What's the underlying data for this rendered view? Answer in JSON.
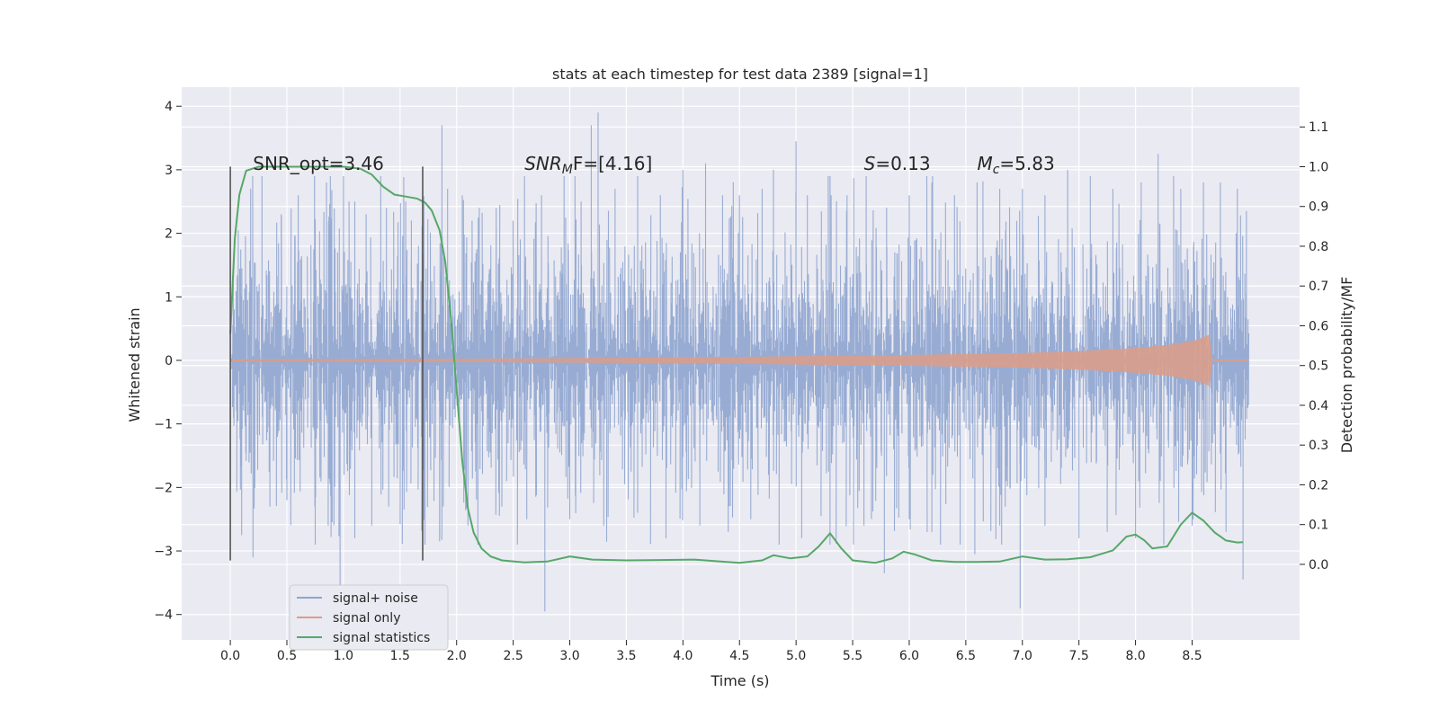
{
  "colors": {
    "background": "#ffffff",
    "plot_bg": "#eaeaf2",
    "grid": "#ffffff",
    "text": "#262626",
    "noise": "#8fa5cf",
    "signal": "#dd9d87",
    "statistics": "#55a868",
    "marker": "#555555"
  },
  "chart_data": {
    "type": "line",
    "title": "stats at each timestep for test data 2389 [signal=1]",
    "xlabel": "Time (s)",
    "ylabel": "Whitened strain",
    "y2label": "Detection probability/MF",
    "xlim": [
      -0.43,
      9.45
    ],
    "ylim": [
      -4.4,
      4.3
    ],
    "y2lim": [
      -0.19,
      1.2
    ],
    "xticks": [
      0.0,
      0.5,
      1.0,
      1.5,
      2.0,
      2.5,
      3.0,
      3.5,
      4.0,
      4.5,
      5.0,
      5.5,
      6.0,
      6.5,
      7.0,
      7.5,
      8.0,
      8.5
    ],
    "xtick_labels": [
      "0.0",
      "0.5",
      "1.0",
      "1.5",
      "2.0",
      "2.5",
      "3.0",
      "3.5",
      "4.0",
      "4.5",
      "5.0",
      "5.5",
      "6.0",
      "6.5",
      "7.0",
      "7.5",
      "8.0",
      "8.5"
    ],
    "yticks": [
      4,
      3,
      2,
      1,
      0,
      -1,
      -2,
      -3,
      -4
    ],
    "ytick_labels": [
      "4",
      "3",
      "2",
      "1",
      "0",
      "−1",
      "−2",
      "−3",
      "−4"
    ],
    "y2ticks": [
      1.1,
      1.0,
      0.9,
      0.8,
      0.7,
      0.6,
      0.5,
      0.4,
      0.3,
      0.2,
      0.1,
      0.0
    ],
    "y2tick_labels": [
      "1.1",
      "1.0",
      "0.9",
      "0.8",
      "0.7",
      "0.6",
      "0.5",
      "0.4",
      "0.3",
      "0.2",
      "0.1",
      "0.0"
    ],
    "grid": true,
    "legend_position": "lower-left",
    "series": [
      {
        "name": "signal+ noise",
        "kind": "noise-band",
        "x_range": [
          0.0,
          9.0
        ],
        "envelope_1sigma": 1.25,
        "peaks_up": [
          [
            0.07,
            2.05
          ],
          [
            0.18,
            2.7
          ],
          [
            0.28,
            2.9
          ],
          [
            0.45,
            2.3
          ],
          [
            0.6,
            2.6
          ],
          [
            0.85,
            2.8
          ],
          [
            1.0,
            2.9
          ],
          [
            1.1,
            2.5
          ],
          [
            1.2,
            2.3
          ],
          [
            1.38,
            2.4
          ],
          [
            1.55,
            2.5
          ],
          [
            1.6,
            2.2
          ],
          [
            1.87,
            3.7
          ],
          [
            1.92,
            2.7
          ],
          [
            2.05,
            2.6
          ],
          [
            2.2,
            2.4
          ],
          [
            2.35,
            2.1
          ],
          [
            2.6,
            2.9
          ],
          [
            2.75,
            2.6
          ],
          [
            2.95,
            2.9
          ],
          [
            3.1,
            2.5
          ],
          [
            3.19,
            3.7
          ],
          [
            3.25,
            3.9
          ],
          [
            3.4,
            2.7
          ],
          [
            3.6,
            2.9
          ],
          [
            3.8,
            2.6
          ],
          [
            4.0,
            3.0
          ],
          [
            4.2,
            3.1
          ],
          [
            4.35,
            2.6
          ],
          [
            4.5,
            2.6
          ],
          [
            4.7,
            2.7
          ],
          [
            4.8,
            3.0
          ],
          [
            5.0,
            3.45
          ],
          [
            5.1,
            2.6
          ],
          [
            5.3,
            2.9
          ],
          [
            5.45,
            2.6
          ],
          [
            5.62,
            2.9
          ],
          [
            5.8,
            2.4
          ],
          [
            6.0,
            2.6
          ],
          [
            6.2,
            2.8
          ],
          [
            6.4,
            2.6
          ],
          [
            6.6,
            2.8
          ],
          [
            6.8,
            2.7
          ],
          [
            7.0,
            2.7
          ],
          [
            7.2,
            2.6
          ],
          [
            7.4,
            3.0
          ],
          [
            7.6,
            2.9
          ],
          [
            7.8,
            2.7
          ],
          [
            8.05,
            2.8
          ],
          [
            8.2,
            3.25
          ],
          [
            8.4,
            2.7
          ],
          [
            8.6,
            2.8
          ],
          [
            8.75,
            2.8
          ],
          [
            8.9,
            2.7
          ],
          [
            8.98,
            2.35
          ]
        ],
        "peaks_down": [
          [
            0.1,
            -2.75
          ],
          [
            0.2,
            -3.1
          ],
          [
            0.35,
            -2.3
          ],
          [
            0.5,
            -2.2
          ],
          [
            0.75,
            -2.9
          ],
          [
            0.97,
            -3.55
          ],
          [
            1.1,
            -2.8
          ],
          [
            1.25,
            -2.6
          ],
          [
            1.4,
            -2.3
          ],
          [
            1.72,
            -2.9
          ],
          [
            1.85,
            -2.85
          ],
          [
            2.1,
            -2.6
          ],
          [
            2.4,
            -2.3
          ],
          [
            2.62,
            -2.5
          ],
          [
            2.78,
            -3.95
          ],
          [
            3.0,
            -2.5
          ],
          [
            3.3,
            -2.6
          ],
          [
            3.6,
            -2.4
          ],
          [
            3.85,
            -2.8
          ],
          [
            4.15,
            -2.6
          ],
          [
            4.4,
            -2.7
          ],
          [
            4.6,
            -2.5
          ],
          [
            4.85,
            -2.9
          ],
          [
            5.05,
            -2.8
          ],
          [
            5.3,
            -2.9
          ],
          [
            5.6,
            -2.6
          ],
          [
            5.78,
            -3.35
          ],
          [
            6.0,
            -2.5
          ],
          [
            6.2,
            -2.7
          ],
          [
            6.45,
            -2.9
          ],
          [
            6.58,
            -3.05
          ],
          [
            6.8,
            -2.6
          ],
          [
            6.98,
            -3.9
          ],
          [
            7.2,
            -2.6
          ],
          [
            7.5,
            -2.8
          ],
          [
            7.75,
            -2.7
          ],
          [
            8.0,
            -2.8
          ],
          [
            8.25,
            -2.9
          ],
          [
            8.5,
            -2.6
          ],
          [
            8.8,
            -2.7
          ],
          [
            8.95,
            -3.45
          ]
        ]
      },
      {
        "name": "signal only",
        "kind": "chirp-band",
        "x_range": [
          0.0,
          8.67
        ],
        "amplitude": [
          [
            0.0,
            0.01
          ],
          [
            2.0,
            0.02
          ],
          [
            4.0,
            0.04
          ],
          [
            5.0,
            0.06
          ],
          [
            6.0,
            0.08
          ],
          [
            7.0,
            0.11
          ],
          [
            7.5,
            0.14
          ],
          [
            8.0,
            0.19
          ],
          [
            8.3,
            0.24
          ],
          [
            8.5,
            0.3
          ],
          [
            8.6,
            0.35
          ],
          [
            8.65,
            0.4
          ],
          [
            8.67,
            0.1
          ]
        ],
        "tail_x": [
          8.67,
          9.0
        ]
      },
      {
        "name": "signal statistics",
        "axis": "right",
        "points": [
          [
            0.0,
            0.58
          ],
          [
            0.04,
            0.82
          ],
          [
            0.08,
            0.93
          ],
          [
            0.14,
            0.99
          ],
          [
            0.25,
            1.0
          ],
          [
            0.5,
            1.0
          ],
          [
            0.8,
            1.0
          ],
          [
            1.0,
            1.0
          ],
          [
            1.15,
            0.995
          ],
          [
            1.25,
            0.98
          ],
          [
            1.35,
            0.95
          ],
          [
            1.45,
            0.93
          ],
          [
            1.55,
            0.925
          ],
          [
            1.65,
            0.92
          ],
          [
            1.72,
            0.91
          ],
          [
            1.78,
            0.89
          ],
          [
            1.85,
            0.84
          ],
          [
            1.9,
            0.76
          ],
          [
            1.95,
            0.62
          ],
          [
            2.0,
            0.44
          ],
          [
            2.05,
            0.26
          ],
          [
            2.1,
            0.14
          ],
          [
            2.15,
            0.08
          ],
          [
            2.22,
            0.04
          ],
          [
            2.3,
            0.02
          ],
          [
            2.4,
            0.01
          ],
          [
            2.6,
            0.005
          ],
          [
            2.8,
            0.007
          ],
          [
            3.0,
            0.02
          ],
          [
            3.2,
            0.012
          ],
          [
            3.5,
            0.01
          ],
          [
            3.8,
            0.011
          ],
          [
            4.1,
            0.012
          ],
          [
            4.5,
            0.004
          ],
          [
            4.7,
            0.01
          ],
          [
            4.8,
            0.023
          ],
          [
            4.95,
            0.015
          ],
          [
            5.1,
            0.02
          ],
          [
            5.2,
            0.045
          ],
          [
            5.3,
            0.078
          ],
          [
            5.4,
            0.04
          ],
          [
            5.5,
            0.01
          ],
          [
            5.7,
            0.004
          ],
          [
            5.85,
            0.015
          ],
          [
            5.95,
            0.032
          ],
          [
            6.05,
            0.025
          ],
          [
            6.2,
            0.01
          ],
          [
            6.4,
            0.006
          ],
          [
            6.6,
            0.006
          ],
          [
            6.8,
            0.007
          ],
          [
            7.0,
            0.02
          ],
          [
            7.2,
            0.012
          ],
          [
            7.4,
            0.013
          ],
          [
            7.6,
            0.018
          ],
          [
            7.8,
            0.035
          ],
          [
            7.92,
            0.07
          ],
          [
            8.0,
            0.075
          ],
          [
            8.08,
            0.06
          ],
          [
            8.15,
            0.04
          ],
          [
            8.28,
            0.045
          ],
          [
            8.4,
            0.1
          ],
          [
            8.5,
            0.13
          ],
          [
            8.6,
            0.11
          ],
          [
            8.7,
            0.08
          ],
          [
            8.8,
            0.06
          ],
          [
            8.9,
            0.055
          ],
          [
            8.95,
            0.056
          ]
        ]
      }
    ],
    "markers": [
      {
        "x": 0.0,
        "ymin": -3.15,
        "ymax": 3.05
      },
      {
        "x": 1.7,
        "ymin": -3.15,
        "ymax": 3.05
      }
    ],
    "annotations": [
      {
        "key": "snr_opt",
        "text": "SNR_opt=3.46",
        "x": 0.2,
        "y": 3.1,
        "mathml": false
      },
      {
        "key": "snr_mf",
        "base": "SNR",
        "sub": "M",
        "rest": "F=[4.16]",
        "x": 2.6,
        "y": 3.1,
        "mathml": true
      },
      {
        "key": "spin",
        "base": "S",
        "sub": "",
        "rest": "=0.13",
        "x": 5.6,
        "y": 3.1,
        "mathml": true
      },
      {
        "key": "chirp_mass",
        "base": "M",
        "sub": "c",
        "rest": "=5.83",
        "x": 6.6,
        "y": 3.1,
        "mathml": true
      }
    ]
  }
}
